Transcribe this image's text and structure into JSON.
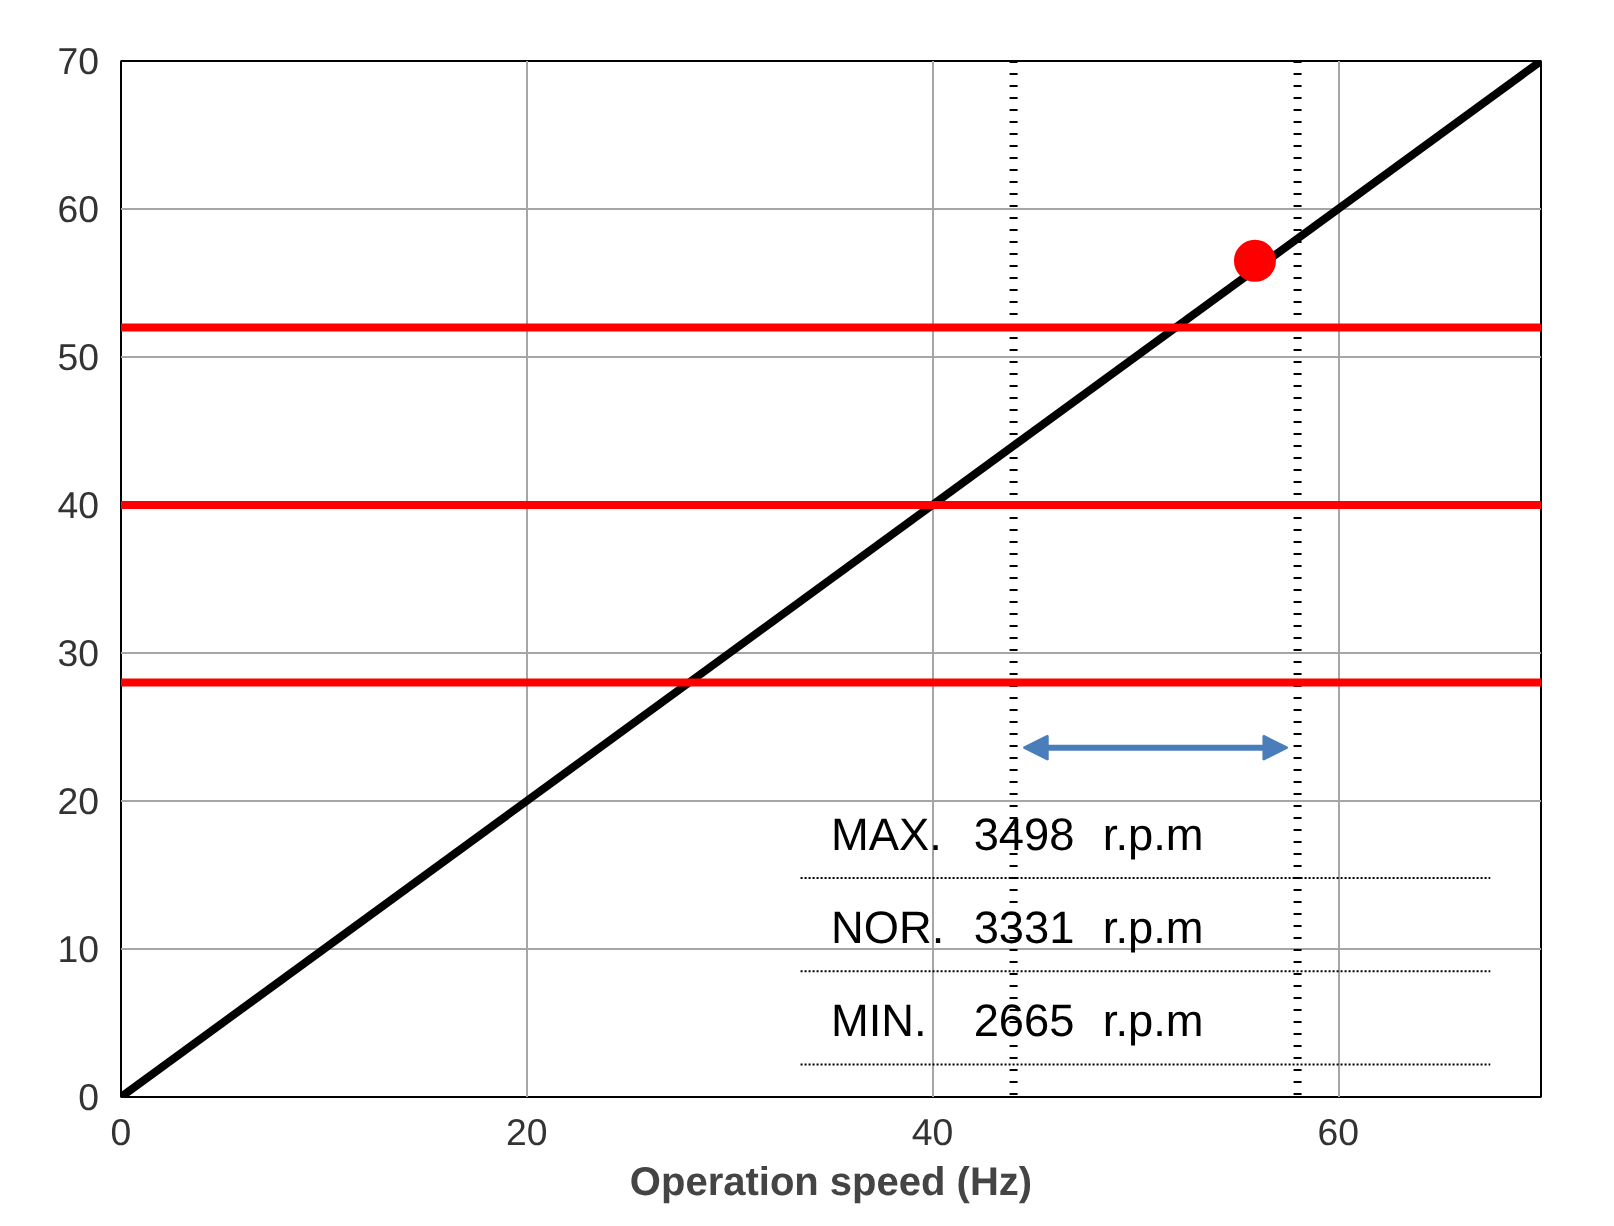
{
  "chart_data": {
    "type": "line",
    "xlabel": "Operation speed (Hz)",
    "xlim": [
      0,
      70
    ],
    "ylim": [
      0,
      70
    ],
    "xticks": [
      0,
      20,
      40,
      60
    ],
    "yticks": [
      0,
      10,
      20,
      30,
      40,
      50,
      60,
      70
    ],
    "grid": true,
    "series": [
      {
        "x": [
          0,
          70
        ],
        "values": [
          0,
          70
        ],
        "color": "#000000"
      },
      {
        "type": "scatter",
        "x": [
          55.9
        ],
        "values": [
          56.5
        ],
        "color": "#ff0000"
      }
    ],
    "ref_lines": [
      {
        "axis": "x",
        "value": 44,
        "color": "#000000",
        "line_style": "dotted"
      },
      {
        "axis": "x",
        "value": 58,
        "color": "#000000",
        "line_style": "dotted"
      },
      {
        "axis": "y",
        "value": 28,
        "color": "#ff0000"
      },
      {
        "axis": "y",
        "value": 40,
        "color": "#ff0000"
      },
      {
        "axis": "y",
        "value": 52,
        "color": "#ff0000"
      }
    ],
    "annotations": [
      "MAX. 3498 r.p.m",
      "NOR. 3331 r.p.m",
      "MIN. 2665 r.p.m"
    ]
  }
}
